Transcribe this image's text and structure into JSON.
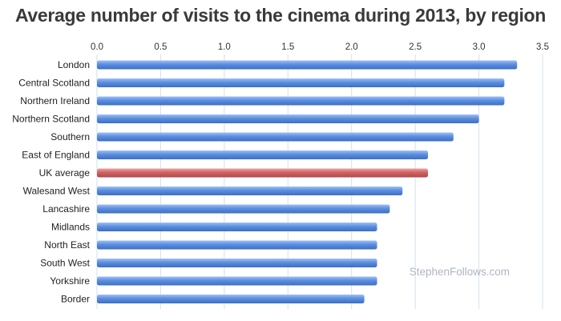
{
  "chart_data": {
    "type": "bar",
    "orientation": "horizontal",
    "title": "Average number of visits to the cinema during 2013, by region",
    "xlabel": "",
    "ylabel": "",
    "xlim": [
      0,
      3.5
    ],
    "ticks": [
      0.0,
      0.5,
      1.0,
      1.5,
      2.0,
      2.5,
      3.0,
      3.5
    ],
    "tick_labels": [
      "0.0",
      "0.5",
      "1.0",
      "1.5",
      "2.0",
      "2.5",
      "3.0",
      "3.5"
    ],
    "axis_position": "top",
    "grid": true,
    "categories": [
      "London",
      "Central Scotland",
      "Northern Ireland",
      "Northern Scotland",
      "Southern",
      "East of England",
      "UK average",
      "Walesand West",
      "Lancashire",
      "Midlands",
      "North East",
      "South West",
      "Yorkshire",
      "Border"
    ],
    "values": [
      3.3,
      3.2,
      3.2,
      3.0,
      2.8,
      2.6,
      2.6,
      2.4,
      2.3,
      2.2,
      2.2,
      2.2,
      2.2,
      2.1
    ],
    "highlight_category": "UK average",
    "colors": {
      "bar": "#5b8ee0",
      "bar_light": "#9ec0f3",
      "bar_dark": "#3e6fc2",
      "highlight": "#cf6363",
      "highlight_light": "#eda3a3",
      "highlight_dark": "#b04848",
      "grid": "#cfe2ef"
    },
    "watermark": "StephenFollows.com"
  }
}
